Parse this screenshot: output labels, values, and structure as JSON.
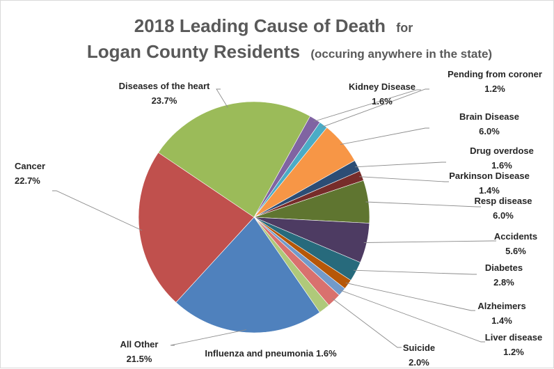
{
  "chart_data": {
    "type": "pie",
    "title_line1": "2018 Leading Cause of Death",
    "title_line1_small": "for",
    "title_line2": "Logan County Residents",
    "title_line2_small": "(occuring anywhere in the state)",
    "slices": [
      {
        "label": "Diseases of the heart",
        "pct_text": "23.7%",
        "value": 23.7,
        "color": "#9BBB59"
      },
      {
        "label": "Kidney Disease",
        "pct_text": "1.6%",
        "value": 1.6,
        "color": "#8064A2"
      },
      {
        "label": "Pending from coroner",
        "pct_text": "1.2%",
        "value": 1.2,
        "color": "#4BACC6"
      },
      {
        "label": "Brain Disease",
        "pct_text": "6.0%",
        "value": 6.0,
        "color": "#F79646"
      },
      {
        "label": "Drug overdose",
        "pct_text": "1.6%",
        "value": 1.6,
        "color": "#2C4D75"
      },
      {
        "label": "Parkinson Disease",
        "pct_text": "1.4%",
        "value": 1.4,
        "color": "#772C2A"
      },
      {
        "label": "Resp disease",
        "pct_text": "6.0%",
        "value": 6.0,
        "color": "#5F7530"
      },
      {
        "label": "Accidents",
        "pct_text": "5.6%",
        "value": 5.6,
        "color": "#4D3B62"
      },
      {
        "label": "Diabetes",
        "pct_text": "2.8%",
        "value": 2.8,
        "color": "#276A7C"
      },
      {
        "label": "Alzheimers",
        "pct_text": "1.4%",
        "value": 1.4,
        "color": "#B65708"
      },
      {
        "label": "Liver disease",
        "pct_text": "1.2%",
        "value": 1.2,
        "color": "#729ACA"
      },
      {
        "label": "Suicide",
        "pct_text": "2.0%",
        "value": 2.0,
        "color": "#D9716E"
      },
      {
        "label": "Influenza and pneumonia",
        "pct_text": "1.6%",
        "value": 1.6,
        "color": "#AFC97A"
      },
      {
        "label": "All Other",
        "pct_text": "21.5%",
        "value": 21.5,
        "color": "#4F81BD"
      },
      {
        "label": "Cancer",
        "pct_text": "22.7%",
        "value": 22.7,
        "color": "#C0504D"
      }
    ]
  }
}
